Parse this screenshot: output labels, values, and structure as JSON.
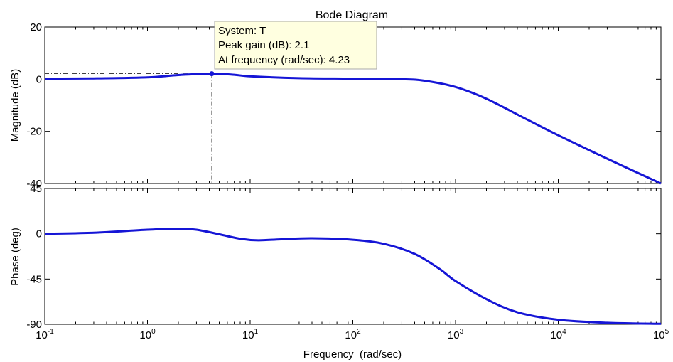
{
  "chart_data": {
    "type": "line",
    "title": "Bode Diagram",
    "xlabel": "Frequency  (rad/sec)",
    "xscale": "log",
    "xlim": [
      0.1,
      100000
    ],
    "x_ticks": [
      {
        "base": "10",
        "exp": "-1"
      },
      {
        "base": "10",
        "exp": "0"
      },
      {
        "base": "10",
        "exp": "1"
      },
      {
        "base": "10",
        "exp": "2"
      },
      {
        "base": "10",
        "exp": "3"
      },
      {
        "base": "10",
        "exp": "4"
      },
      {
        "base": "10",
        "exp": "5"
      }
    ],
    "line_color": "#1515d6",
    "grid": false,
    "magnitude": {
      "ylabel": "Magnitude (dB)",
      "ylim": [
        -40,
        20
      ],
      "yticks": [
        "20",
        "0",
        "-20",
        "-40"
      ],
      "x": [
        0.1,
        0.3,
        1,
        2,
        4.23,
        7,
        10,
        30,
        100,
        300,
        500,
        1000,
        2000,
        5000,
        10000,
        30000,
        100000
      ],
      "y": [
        0.2,
        0.3,
        0.7,
        1.6,
        2.1,
        1.7,
        1.1,
        0.4,
        0.2,
        0.0,
        -0.6,
        -3.0,
        -7.5,
        -15.5,
        -21.5,
        -30.5,
        -40.0
      ]
    },
    "phase": {
      "ylabel": "Phase (deg)",
      "ylim": [
        -90,
        45
      ],
      "yticks": [
        "45",
        "0",
        "-45",
        "-90"
      ],
      "x": [
        0.1,
        0.3,
        1,
        2,
        3,
        5,
        8,
        12,
        20,
        40,
        100,
        200,
        400,
        700,
        1000,
        2000,
        4000,
        10000,
        30000,
        100000
      ],
      "y": [
        0.0,
        1.0,
        4.0,
        5.0,
        4.0,
        -0.5,
        -5.0,
        -6.5,
        -5.5,
        -4.5,
        -6.0,
        -10.0,
        -20.0,
        -35.0,
        -47.0,
        -65.0,
        -78.0,
        -85.5,
        -88.5,
        -89.5
      ]
    },
    "datatip": {
      "system_label": "System: T",
      "gain_label": "Peak gain (dB): 2.1",
      "freq_label": "At frequency (rad/sec): 4.23",
      "peak_gain_db": 2.1,
      "frequency": 4.23
    }
  }
}
